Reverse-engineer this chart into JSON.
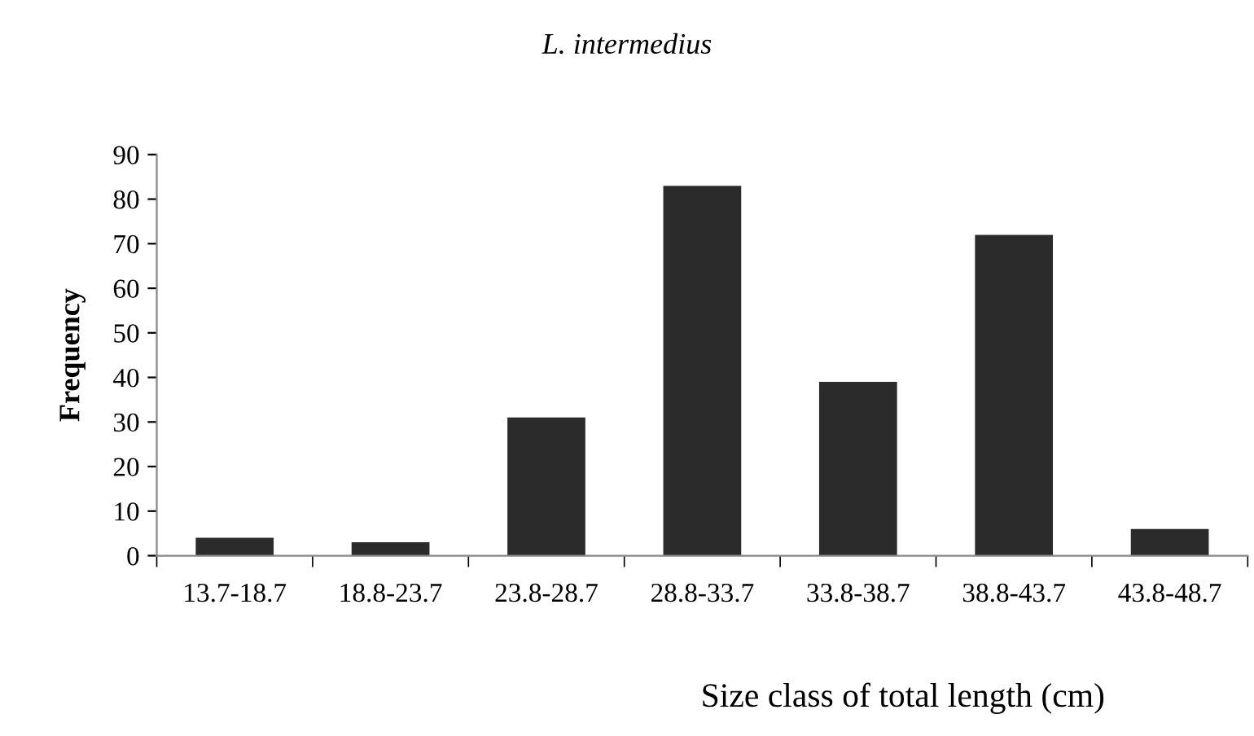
{
  "chart_data": {
    "type": "bar",
    "title": "L. intermedius",
    "xlabel": "Size class of total length (cm)",
    "ylabel": "Frequency",
    "categories": [
      "13.7-18.7",
      "18.8-23.7",
      "23.8-28.7",
      "28.8-33.7",
      "33.8-38.7",
      "38.8-43.7",
      "43.8-48.7"
    ],
    "values": [
      4,
      3,
      31,
      83,
      39,
      72,
      6
    ],
    "color": "#2b2b2b",
    "ylim": [
      0,
      90
    ],
    "yticks": [
      0,
      10,
      20,
      30,
      40,
      50,
      60,
      70,
      80,
      90
    ],
    "grid": false,
    "legend": false
  }
}
